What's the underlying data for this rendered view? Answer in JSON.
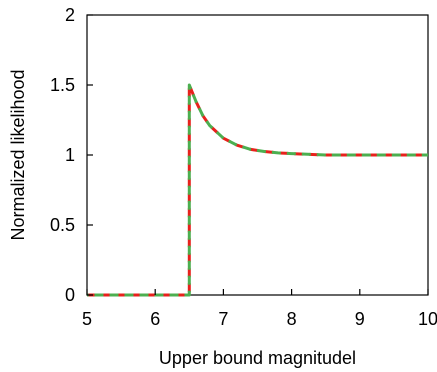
{
  "chart_data": {
    "type": "line",
    "title": "",
    "xlabel": "Upper bound magnitudel",
    "ylabel": "Normalized likelihood",
    "xlim": [
      5,
      10
    ],
    "ylim": [
      0,
      2
    ],
    "xticks": [
      "5",
      "6",
      "7",
      "8",
      "9",
      "10"
    ],
    "yticks": [
      "0",
      "0.5",
      "1",
      "1.5",
      "2"
    ],
    "grid": false,
    "legend": "none",
    "series": [
      {
        "color": "#e8211c",
        "dash": "dashed",
        "x": [
          5.0,
          6.49,
          6.5,
          6.5,
          6.6,
          6.7,
          6.8,
          7.0,
          7.2,
          7.4,
          7.6,
          7.8,
          8.0,
          8.5,
          9.0,
          9.5,
          10.0
        ],
        "y": [
          0.0,
          0.0,
          0.0,
          1.5,
          1.38,
          1.28,
          1.21,
          1.12,
          1.07,
          1.04,
          1.025,
          1.015,
          1.01,
          1.0,
          1.0,
          1.0,
          1.0
        ]
      },
      {
        "color": "#4caf50",
        "dash": "dashed-offset",
        "x": [
          5.0,
          6.49,
          6.5,
          6.5,
          6.6,
          6.7,
          6.8,
          7.0,
          7.2,
          7.4,
          7.6,
          7.8,
          8.0,
          8.5,
          9.0,
          9.5,
          10.0
        ],
        "y": [
          0.0,
          0.0,
          0.0,
          1.5,
          1.38,
          1.28,
          1.21,
          1.12,
          1.07,
          1.04,
          1.025,
          1.015,
          1.01,
          1.0,
          1.0,
          1.0,
          1.0
        ]
      }
    ]
  }
}
